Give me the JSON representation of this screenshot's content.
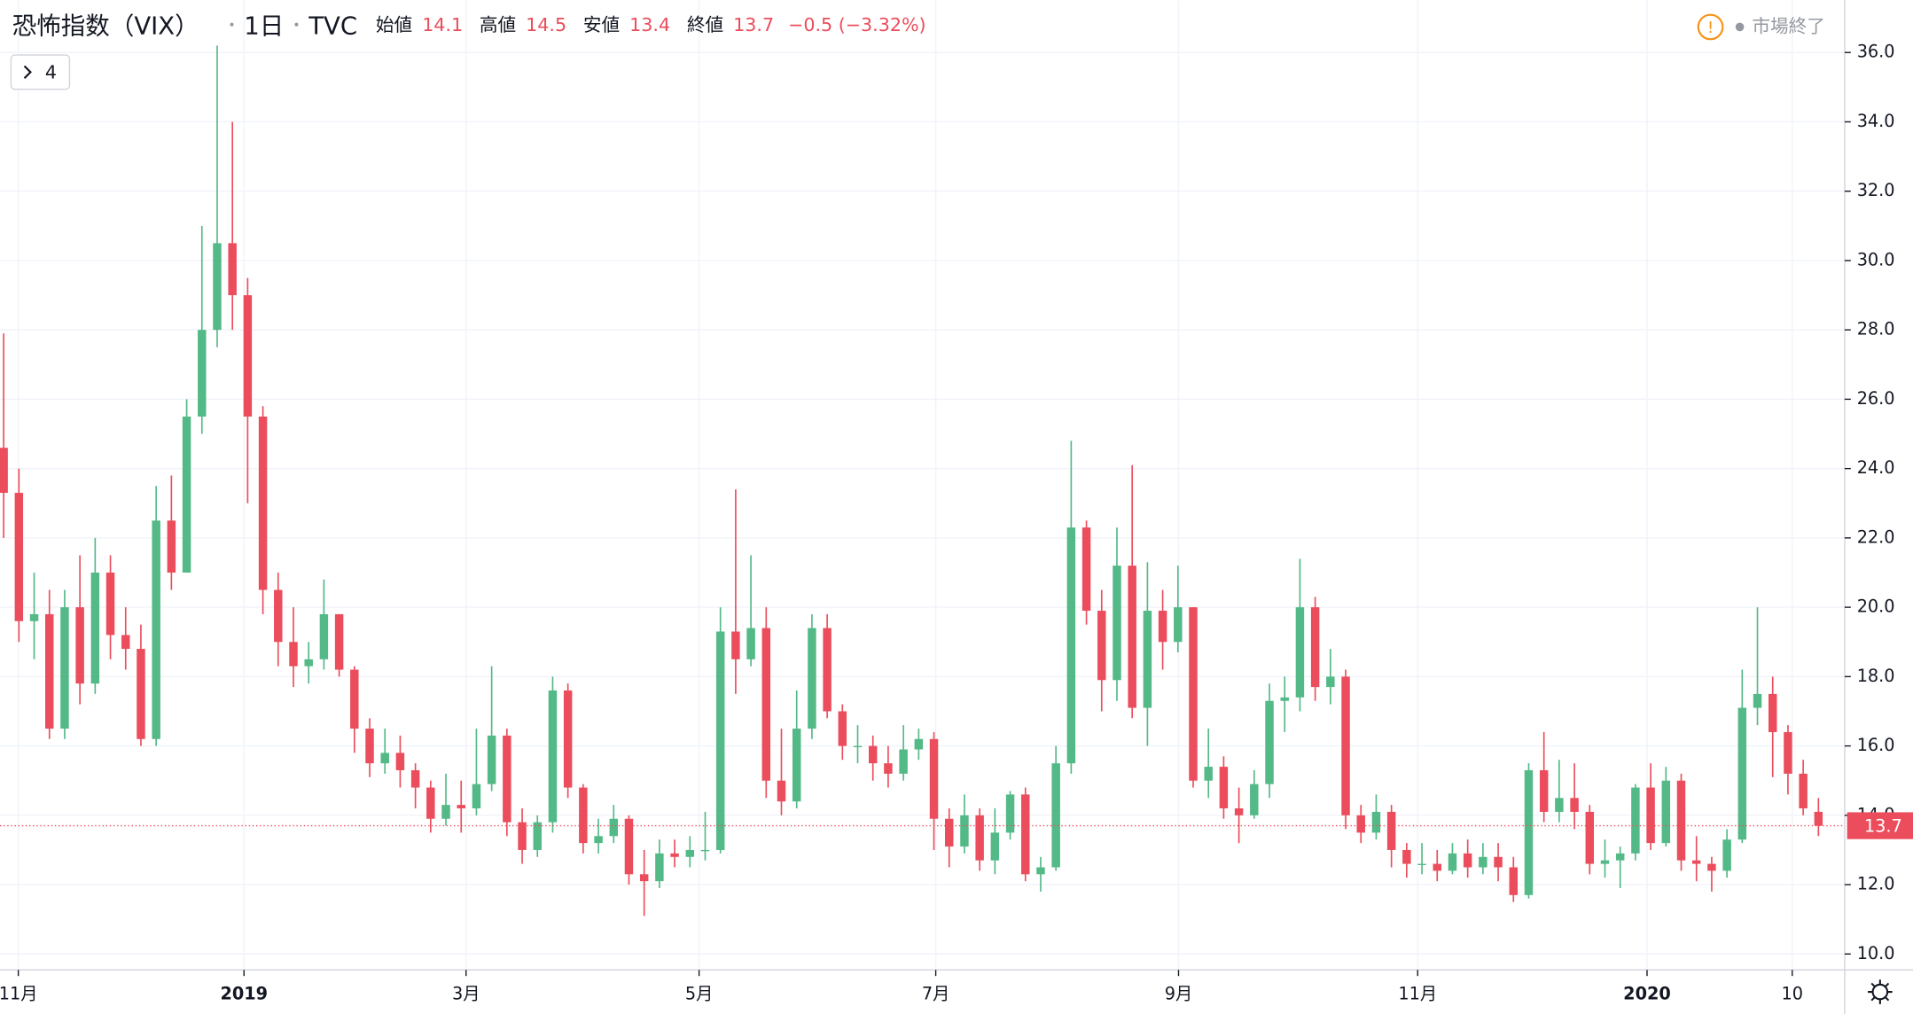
{
  "chart_data": {
    "type": "candlestick",
    "title": "恐怖指数（VIX）",
    "interval": "1日",
    "source": "TVC",
    "ohlc_labels": [
      "始値",
      "高値",
      "安値",
      "終値"
    ],
    "change_label": "−0.5 (−3.32%)",
    "button_label": "4",
    "market_status": "市場終了",
    "up_color": "#53b987",
    "down_color": "#eb4d5c",
    "grid": true,
    "open": [
      24.6,
      23.3,
      19.6,
      19.8,
      16.5,
      20.0,
      17.8,
      21.0,
      19.2,
      18.8,
      16.2,
      22.5,
      21.0,
      25.5,
      28.0,
      30.5,
      29.0,
      25.5,
      20.5,
      19.0,
      18.3,
      18.5,
      19.8,
      18.2,
      16.5,
      15.5,
      15.8,
      15.3,
      14.8,
      13.9,
      14.3,
      14.2,
      14.9,
      16.3,
      13.8,
      13.0,
      13.8,
      17.6,
      14.8,
      13.2,
      13.4,
      13.9,
      12.3,
      12.1,
      12.9,
      12.8,
      13.0,
      13.0,
      19.3,
      18.5,
      19.4,
      15.0,
      14.4,
      16.5,
      19.4,
      17.0,
      16.0,
      16.0,
      15.5,
      15.2,
      15.9,
      16.2,
      13.9,
      13.1,
      14.0,
      12.7,
      13.5,
      14.6,
      12.3,
      12.5,
      15.5,
      22.3,
      19.9,
      17.9,
      21.2,
      17.1,
      19.9,
      19.0,
      20.0,
      15.0,
      15.4,
      14.2,
      14.0,
      14.9,
      17.3,
      17.4,
      20.0,
      17.7,
      18.0,
      14.0,
      13.5,
      14.1,
      13.0,
      12.6,
      12.6,
      12.4,
      12.9,
      12.5,
      12.8,
      12.5,
      11.7,
      15.3,
      14.1,
      14.5,
      14.1,
      12.6,
      12.7,
      12.9,
      14.8,
      13.2,
      15.0,
      12.7,
      12.6,
      12.4,
      13.3,
      17.1,
      17.5,
      16.4,
      15.2,
      14.1
    ],
    "high": [
      27.9,
      24.0,
      21.0,
      20.5,
      20.5,
      21.5,
      22.0,
      21.5,
      20.0,
      19.5,
      23.5,
      23.8,
      26.0,
      31.0,
      36.2,
      34.0,
      29.5,
      25.8,
      21.0,
      20.0,
      19.0,
      20.8,
      19.8,
      18.3,
      16.8,
      16.5,
      16.3,
      15.5,
      15.0,
      15.2,
      15.0,
      16.5,
      18.3,
      16.5,
      14.2,
      14.0,
      18.0,
      17.8,
      14.9,
      13.9,
      14.3,
      14.0,
      13.0,
      13.3,
      13.3,
      13.4,
      14.1,
      20.0,
      23.4,
      21.5,
      20.0,
      16.5,
      17.6,
      19.8,
      19.8,
      17.2,
      16.6,
      16.3,
      16.0,
      16.6,
      16.5,
      16.4,
      14.2,
      14.6,
      14.2,
      14.2,
      14.7,
      14.8,
      12.8,
      16.0,
      24.8,
      22.5,
      20.5,
      22.3,
      24.1,
      21.3,
      20.5,
      21.2,
      20.0,
      16.5,
      15.7,
      14.8,
      15.3,
      17.8,
      18.0,
      21.4,
      20.3,
      18.8,
      18.2,
      14.3,
      14.6,
      14.3,
      13.2,
      13.2,
      13.0,
      13.2,
      13.3,
      13.2,
      13.2,
      12.8,
      15.5,
      16.4,
      15.6,
      15.5,
      14.3,
      13.3,
      13.1,
      14.9,
      15.5,
      15.4,
      15.2,
      13.4,
      12.8,
      13.6,
      18.2,
      20.0,
      18.0,
      16.6,
      15.6,
      14.5
    ],
    "low": [
      22.0,
      19.0,
      18.5,
      16.2,
      16.2,
      17.2,
      17.5,
      18.5,
      18.2,
      16.0,
      16.0,
      20.5,
      21.0,
      25.0,
      27.5,
      28.0,
      23.0,
      19.8,
      18.3,
      17.7,
      17.8,
      18.2,
      18.0,
      15.8,
      15.1,
      15.2,
      14.8,
      14.2,
      13.5,
      13.7,
      13.5,
      14.0,
      14.7,
      13.4,
      12.6,
      12.8,
      13.5,
      14.5,
      12.9,
      12.9,
      13.2,
      12.0,
      11.1,
      11.9,
      12.5,
      12.5,
      12.7,
      12.9,
      17.5,
      18.3,
      14.5,
      14.0,
      14.2,
      16.2,
      16.8,
      15.6,
      15.5,
      15.0,
      14.8,
      15.0,
      15.6,
      13.0,
      12.5,
      12.9,
      12.4,
      12.3,
      13.3,
      12.1,
      11.8,
      12.4,
      15.2,
      19.5,
      17.0,
      17.3,
      16.8,
      16.0,
      18.2,
      18.7,
      14.8,
      14.5,
      13.9,
      13.2,
      13.9,
      14.5,
      16.4,
      17.0,
      17.3,
      17.2,
      13.6,
      13.2,
      13.3,
      12.5,
      12.2,
      12.3,
      12.1,
      12.3,
      12.2,
      12.3,
      12.1,
      11.5,
      11.6,
      13.8,
      13.8,
      13.6,
      12.3,
      12.2,
      11.9,
      12.7,
      13.0,
      13.1,
      12.4,
      12.1,
      11.8,
      12.2,
      13.2,
      16.6,
      15.1,
      14.6,
      14.0,
      13.4
    ],
    "close": [
      23.3,
      19.6,
      19.8,
      16.5,
      20.0,
      17.8,
      21.0,
      19.2,
      18.8,
      16.2,
      22.5,
      21.0,
      25.5,
      28.0,
      30.5,
      29.0,
      25.5,
      20.5,
      19.0,
      18.3,
      18.5,
      19.8,
      18.2,
      16.5,
      15.5,
      15.8,
      15.3,
      14.8,
      13.9,
      14.3,
      14.2,
      14.9,
      16.3,
      13.8,
      13.0,
      13.8,
      17.6,
      14.8,
      13.2,
      13.4,
      13.9,
      12.3,
      12.1,
      12.9,
      12.8,
      13.0,
      13.0,
      19.3,
      18.5,
      19.4,
      15.0,
      14.4,
      16.5,
      19.4,
      17.0,
      16.0,
      16.0,
      15.5,
      15.2,
      15.9,
      16.2,
      13.9,
      13.1,
      14.0,
      12.7,
      13.5,
      14.6,
      12.3,
      12.5,
      15.5,
      22.3,
      19.9,
      17.9,
      21.2,
      17.1,
      19.9,
      19.0,
      20.0,
      15.0,
      15.4,
      14.2,
      14.0,
      14.9,
      17.3,
      17.4,
      20.0,
      17.7,
      18.0,
      14.0,
      13.5,
      14.1,
      13.0,
      12.6,
      12.6,
      12.4,
      12.9,
      12.5,
      12.8,
      12.5,
      11.7,
      15.3,
      14.1,
      14.5,
      14.1,
      12.6,
      12.7,
      12.9,
      14.8,
      13.2,
      15.0,
      12.7,
      12.6,
      12.4,
      13.3,
      17.1,
      17.5,
      16.4,
      15.2,
      14.2,
      13.7
    ],
    "xlim": [
      -0.24,
      120.56
    ],
    "xticks": [
      {
        "value": 0.96,
        "label": "11月"
      },
      {
        "value": 15.76,
        "label": "2019"
      },
      {
        "value": 30.32,
        "label": "3月"
      },
      {
        "value": 45.6,
        "label": "5月"
      },
      {
        "value": 61.12,
        "label": "7月"
      },
      {
        "value": 77.04,
        "label": "9月"
      },
      {
        "value": 92.72,
        "label": "11月"
      },
      {
        "value": 107.76,
        "label": "2020"
      },
      {
        "value": 117.28,
        "label": "10"
      }
    ],
    "ylim": [
      9.54,
      37.51
    ],
    "yticks": [
      {
        "value": 10,
        "label": "10.0"
      },
      {
        "value": 12,
        "label": "12.0"
      },
      {
        "value": 14,
        "label": "14.0"
      },
      {
        "value": 16,
        "label": "16.0"
      },
      {
        "value": 18,
        "label": "18.0"
      },
      {
        "value": 20,
        "label": "20.0"
      },
      {
        "value": 22,
        "label": "22.0"
      },
      {
        "value": 24,
        "label": "24.0"
      },
      {
        "value": 26,
        "label": "26.0"
      },
      {
        "value": 28,
        "label": "28.0"
      },
      {
        "value": 30,
        "label": "30.0"
      },
      {
        "value": 32,
        "label": "32.0"
      },
      {
        "value": 34,
        "label": "34.0"
      },
      {
        "value": 36,
        "label": "36.0"
      }
    ]
  }
}
